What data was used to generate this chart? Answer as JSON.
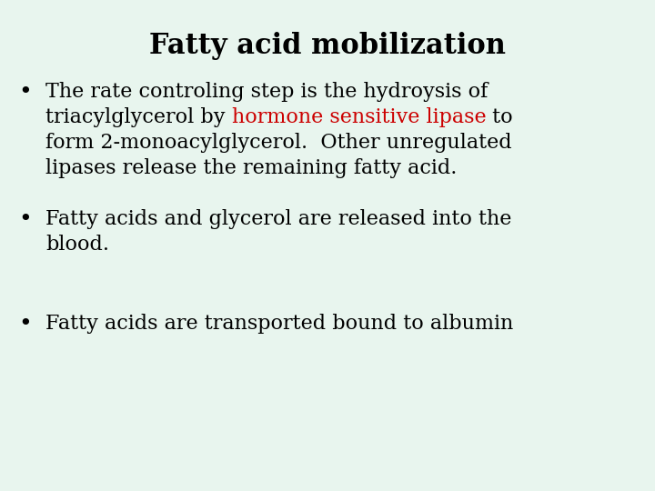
{
  "title": "Fatty acid mobilization",
  "background_color": "#e8f5ee",
  "title_color": "#000000",
  "title_fontsize": 22,
  "title_bold": true,
  "bullet_fontsize": 16,
  "highlight_color": "#cc0000",
  "text_color": "#000000",
  "fig_width": 7.2,
  "fig_height": 5.4,
  "fig_dpi": 100,
  "bullet1_lines": [
    [
      {
        "text": "The rate controling step is the hydroysis of",
        "color": "#000000"
      }
    ],
    [
      {
        "text": "triacylglycerol by ",
        "color": "#000000"
      },
      {
        "text": "hormone sensitive lipase",
        "color": "#cc0000"
      },
      {
        "text": " to",
        "color": "#000000"
      }
    ],
    [
      {
        "text": "form 2-monoacylglycerol.  Other unregulated",
        "color": "#000000"
      }
    ],
    [
      {
        "text": "lipases release the remaining fatty acid.",
        "color": "#000000"
      }
    ]
  ],
  "bullet2_lines": [
    [
      {
        "text": "Fatty acids and glycerol are released into the",
        "color": "#000000"
      }
    ],
    [
      {
        "text": "blood.",
        "color": "#000000"
      }
    ]
  ],
  "bullet3_lines": [
    [
      {
        "text": "Fatty acids are transported bound to albumin",
        "color": "#000000"
      }
    ]
  ]
}
